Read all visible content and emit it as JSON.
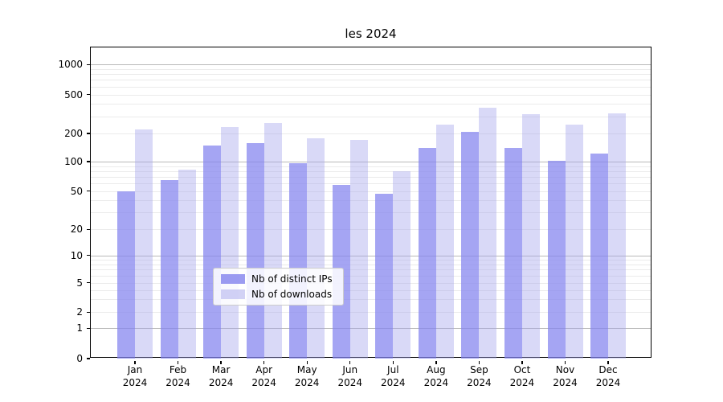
{
  "chart_data": {
    "type": "bar",
    "title": "les 2024",
    "categories": [
      "Jan",
      "Feb",
      "Mar",
      "Apr",
      "May",
      "Jun",
      "Jul",
      "Aug",
      "Sep",
      "Oct",
      "Nov",
      "Dec"
    ],
    "year": "2024",
    "series": [
      {
        "name": "Nb of distinct IPs",
        "color": "#8282ee",
        "alpha": 0.72,
        "values": [
          50,
          65,
          150,
          158,
          97,
          58,
          47,
          140,
          208,
          139,
          103,
          122
        ]
      },
      {
        "name": "Nb of downloads",
        "color": "#a5a5eb",
        "alpha": 0.42,
        "values": [
          219,
          83,
          231,
          254,
          176,
          172,
          80,
          245,
          368,
          314,
          245,
          322
        ]
      }
    ],
    "yticks": [
      1000,
      500,
      200,
      100,
      50,
      20,
      10,
      5,
      2,
      1,
      0
    ],
    "ylim": [
      0,
      1500
    ],
    "yscale": "log (with 0 baseline)",
    "xlabel": "",
    "ylabel": "",
    "grid": true,
    "legend_position": "lower center"
  }
}
